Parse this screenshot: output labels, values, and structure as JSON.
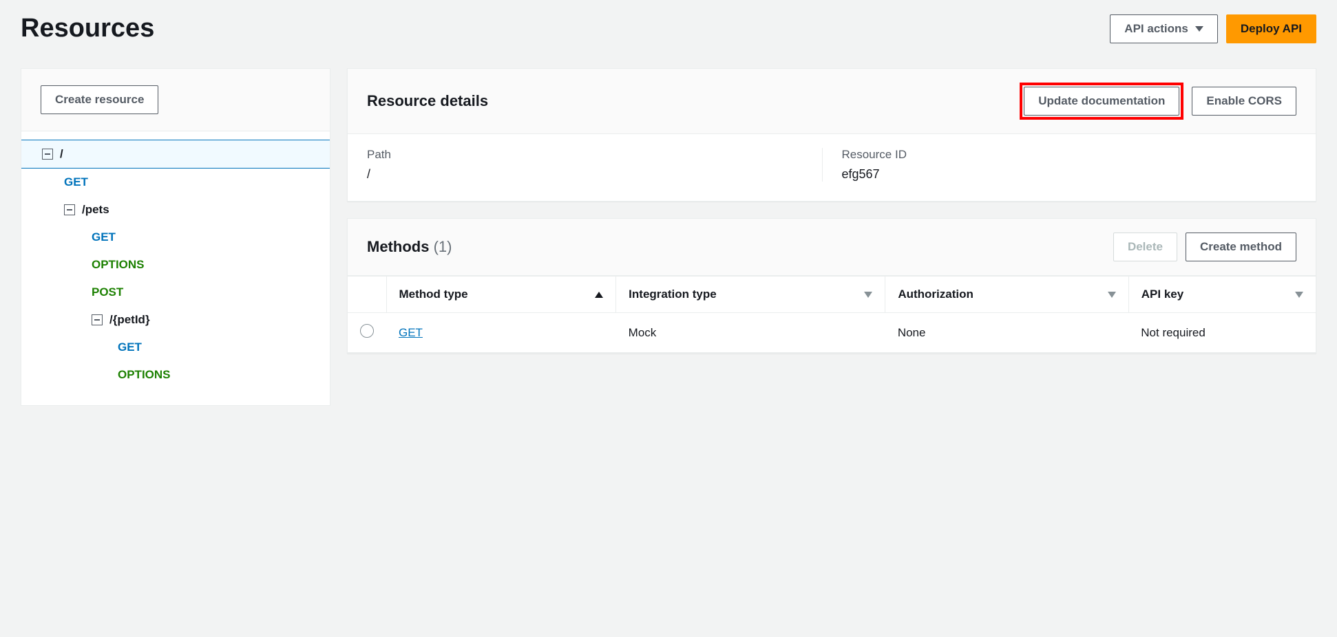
{
  "page": {
    "title": "Resources"
  },
  "header": {
    "api_actions": "API actions",
    "deploy_api": "Deploy API"
  },
  "sidebar": {
    "create_resource": "Create resource",
    "tree": {
      "root": "/",
      "root_get": "GET",
      "pets": "/pets",
      "pets_get": "GET",
      "pets_options": "OPTIONS",
      "pets_post": "POST",
      "petid": "/{petId}",
      "petid_get": "GET",
      "petid_options": "OPTIONS"
    }
  },
  "details": {
    "title": "Resource details",
    "update_doc": "Update documentation",
    "enable_cors": "Enable CORS",
    "path_label": "Path",
    "path_value": "/",
    "id_label": "Resource ID",
    "id_value": "efg567"
  },
  "methods": {
    "title": "Methods",
    "count": "(1)",
    "delete": "Delete",
    "create": "Create method",
    "cols": {
      "method_type": "Method type",
      "integration_type": "Integration type",
      "authorization": "Authorization",
      "api_key": "API key"
    },
    "row": {
      "method": "GET",
      "integration": "Mock",
      "authorization": "None",
      "api_key": "Not required"
    }
  }
}
